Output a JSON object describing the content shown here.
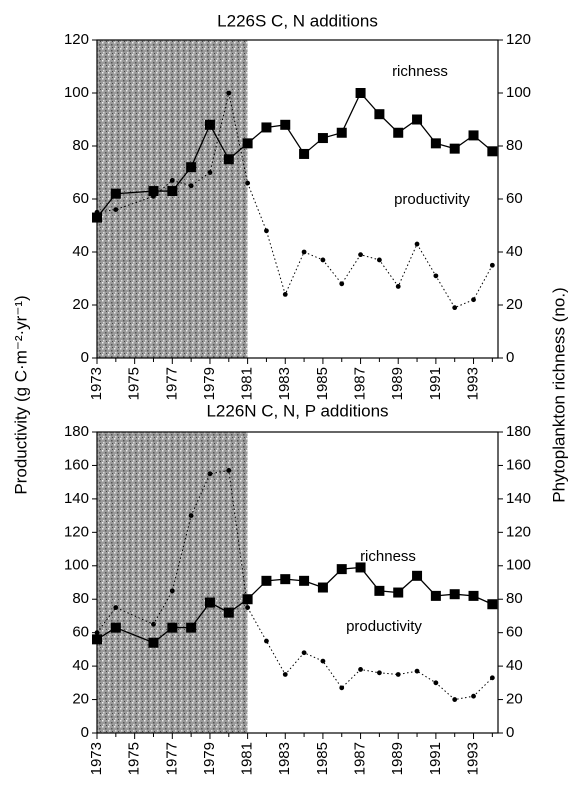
{
  "ylabel": "Productivity (g C·m⁻²·yr⁻¹)",
  "y2label": "Phytoplankton richness (no.)",
  "chart_data": [
    {
      "type": "line",
      "title": "L226S C, N additions",
      "x": [
        1973,
        1974,
        1976,
        1977,
        1978,
        1979,
        1980,
        1981,
        1982,
        1983,
        1984,
        1985,
        1986,
        1987,
        1988,
        1989,
        1990,
        1991,
        1992,
        1993,
        1994
      ],
      "series": [
        {
          "name": "richness",
          "axis": "y2",
          "color": "#000000",
          "marker": "square",
          "values": [
            53,
            62,
            63,
            63,
            72,
            88,
            75,
            81,
            87,
            88,
            77,
            83,
            85,
            100,
            92,
            85,
            90,
            81,
            79,
            84,
            78
          ]
        },
        {
          "name": "productivity",
          "color": "#000000",
          "marker": "dot",
          "values": [
            55,
            56,
            61,
            67,
            65,
            70,
            100,
            66,
            48,
            24,
            40,
            37,
            28,
            39,
            37,
            27,
            43,
            31,
            19,
            22,
            35
          ]
        }
      ],
      "annotations": [
        "richness",
        "productivity"
      ],
      "shade_x": [
        1973,
        1981
      ],
      "xlim": [
        1973,
        1994.3
      ],
      "xticks": [
        1973,
        1975,
        1977,
        1979,
        1981,
        1983,
        1985,
        1987,
        1989,
        1991,
        1993
      ],
      "xminorticks": [
        1974,
        1976,
        1978,
        1980,
        1982,
        1984,
        1986,
        1988,
        1990,
        1992,
        1994
      ],
      "ylim": [
        0,
        120
      ],
      "yticks": [
        0,
        20,
        40,
        60,
        80,
        100,
        120
      ],
      "y2lim": [
        0,
        120
      ],
      "y2ticks": [
        0,
        20,
        40,
        60,
        80,
        100,
        120
      ]
    },
    {
      "type": "line",
      "title": "L226N C, N, P additions",
      "x": [
        1973,
        1974,
        1976,
        1977,
        1978,
        1979,
        1980,
        1981,
        1982,
        1983,
        1984,
        1985,
        1986,
        1987,
        1988,
        1989,
        1990,
        1991,
        1992,
        1993,
        1994
      ],
      "series": [
        {
          "name": "richness",
          "axis": "y2",
          "color": "#000000",
          "marker": "square",
          "values": [
            56,
            63,
            54,
            63,
            63,
            78,
            72,
            80,
            91,
            92,
            91,
            87,
            98,
            99,
            85,
            84,
            94,
            82,
            83,
            82,
            77
          ]
        },
        {
          "name": "productivity",
          "color": "#000000",
          "marker": "dot",
          "values": [
            60,
            75,
            65,
            85,
            130,
            155,
            157,
            75,
            55,
            35,
            48,
            43,
            27,
            38,
            36,
            35,
            37,
            30,
            20,
            22,
            33
          ]
        }
      ],
      "annotations": [
        "richness",
        "productivity"
      ],
      "shade_x": [
        1973,
        1981
      ],
      "xlim": [
        1973,
        1994.3
      ],
      "xticks": [
        1973,
        1975,
        1977,
        1979,
        1981,
        1983,
        1985,
        1987,
        1989,
        1991,
        1993
      ],
      "xminorticks": [
        1974,
        1976,
        1978,
        1980,
        1982,
        1984,
        1986,
        1988,
        1990,
        1992,
        1994
      ],
      "ylim": [
        0,
        180
      ],
      "yticks": [
        0,
        20,
        40,
        60,
        80,
        100,
        120,
        140,
        160,
        180
      ],
      "y2lim": [
        0,
        180
      ],
      "y2ticks": [
        0,
        20,
        40,
        60,
        80,
        100,
        120,
        140,
        160,
        180
      ]
    }
  ]
}
